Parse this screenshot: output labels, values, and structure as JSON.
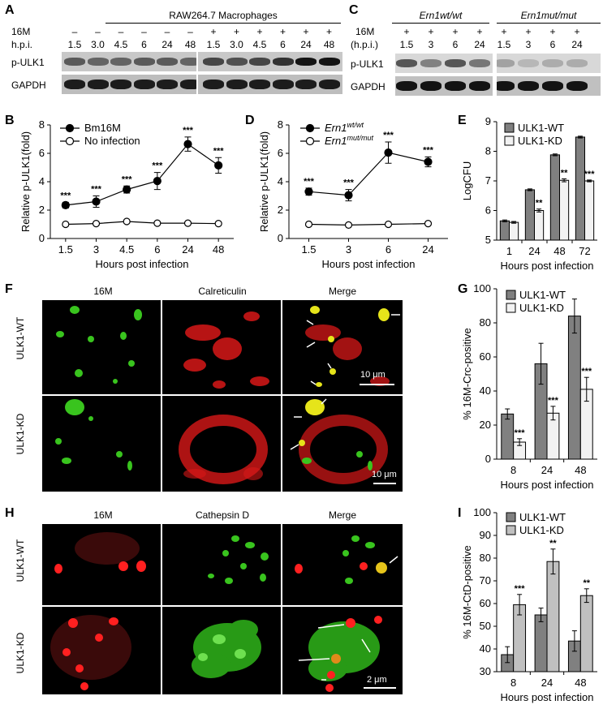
{
  "panels": {
    "A": "A",
    "B": "B",
    "C": "C",
    "D": "D",
    "E": "E",
    "F": "F",
    "G": "G",
    "H": "H",
    "I": "I"
  },
  "panelA": {
    "title": "RAW264.7 Macrophages",
    "row_16m_label": "16M",
    "row_hpi_label": "h.p.i.",
    "signs": [
      "–",
      "–",
      "–",
      "–",
      "–",
      "–",
      "+",
      "+",
      "+",
      "+",
      "+",
      "+"
    ],
    "hpi": [
      "1.5",
      "3.0",
      "4.5",
      "6",
      "24",
      "48",
      "1.5",
      "3.0",
      "4.5",
      "6",
      "24",
      "48"
    ],
    "blot_labels": [
      "p-ULK1",
      "GAPDH"
    ]
  },
  "panelC": {
    "genotype_wt": "Ern1wt/wt",
    "genotype_mut": "Ern1mut/mut",
    "row_16m_label": "16M",
    "row_hpi_label": "(h.p.i.)",
    "signs": [
      "+",
      "+",
      "+",
      "+",
      "+",
      "+",
      "+",
      "+"
    ],
    "hpi": [
      "1.5",
      "3",
      "6",
      "24",
      "1.5",
      "3",
      "6",
      "24"
    ],
    "blot_labels": [
      "p-ULK1",
      "GAPDH"
    ]
  },
  "micrographs": {
    "F": {
      "cols": [
        "16M",
        "Calreticulin",
        "Merge"
      ],
      "rows": [
        "ULK1-WT",
        "ULK1-KD"
      ],
      "scale_wt": "10 μm",
      "scale_kd": "10 μm"
    },
    "H": {
      "cols": [
        "16M",
        "Cathepsin D",
        "Merge"
      ],
      "rows": [
        "ULK1-WT",
        "ULK1-KD"
      ],
      "scale_kd": "2 μm"
    }
  },
  "chart_data": [
    {
      "panel": "B",
      "type": "line",
      "categories": [
        "1.5",
        "3",
        "4.5",
        "6",
        "24",
        "48"
      ],
      "series": [
        {
          "name": "Bm16M",
          "values": [
            2.35,
            2.6,
            3.45,
            4.05,
            6.65,
            5.15
          ],
          "errors": [
            0.2,
            0.4,
            0.25,
            0.6,
            0.5,
            0.55
          ],
          "marker": "filled"
        },
        {
          "name": "No infection",
          "values": [
            1.0,
            1.05,
            1.2,
            1.08,
            1.08,
            1.05
          ],
          "errors": [
            0.05,
            0.05,
            0.05,
            0.05,
            0.05,
            0.05
          ],
          "marker": "open"
        }
      ],
      "significance": [
        "***",
        "***",
        "***",
        "***",
        "***",
        "***"
      ],
      "xlabel": "Hours post infection",
      "ylabel": "Relative p-ULK1(fold)",
      "ylim": [
        0,
        8
      ],
      "yticks": [
        "0",
        "2",
        "4",
        "6",
        "8"
      ]
    },
    {
      "panel": "D",
      "type": "line",
      "categories": [
        "1.5",
        "3",
        "6",
        "24"
      ],
      "series": [
        {
          "name": "Ern1wt/wt",
          "values": [
            3.3,
            3.05,
            6.05,
            5.4
          ],
          "errors": [
            0.25,
            0.4,
            0.75,
            0.35
          ],
          "marker": "filled"
        },
        {
          "name": "Ern1mut/mut",
          "values": [
            1.0,
            0.95,
            1.0,
            1.05
          ],
          "errors": [
            0.05,
            0.05,
            0.05,
            0.1
          ],
          "marker": "open"
        }
      ],
      "significance": [
        "***",
        "***",
        "***",
        "***"
      ],
      "xlabel": "Hours post infection",
      "ylabel": "Relative p-ULK1(fold)",
      "ylim": [
        0,
        8
      ],
      "yticks": [
        "0",
        "2",
        "4",
        "6",
        "8"
      ]
    },
    {
      "panel": "E",
      "type": "bar",
      "categories": [
        "1",
        "24",
        "48",
        "72"
      ],
      "series": [
        {
          "name": "ULK1-WT",
          "values": [
            5.65,
            6.7,
            7.88,
            8.48
          ],
          "errors": [
            0.03,
            0.03,
            0.03,
            0.03
          ],
          "color": "#808080"
        },
        {
          "name": "ULK1-KD",
          "values": [
            5.6,
            6.0,
            7.02,
            7.0
          ],
          "errors": [
            0.03,
            0.05,
            0.05,
            0.03
          ],
          "color": "#f2f2f2"
        }
      ],
      "significance": [
        "",
        "**",
        "**",
        "***"
      ],
      "xlabel": "Hours post infection",
      "ylabel": "LogCFU",
      "ylim": [
        5,
        9
      ],
      "yticks": [
        "5",
        "6",
        "7",
        "8",
        "9"
      ]
    },
    {
      "panel": "G",
      "type": "bar",
      "categories": [
        "8",
        "24",
        "48"
      ],
      "series": [
        {
          "name": "ULK1-WT",
          "values": [
            26.5,
            56,
            84
          ],
          "errors": [
            3,
            12,
            10
          ],
          "color": "#808080"
        },
        {
          "name": "ULK1-KD",
          "values": [
            10,
            27,
            41
          ],
          "errors": [
            2,
            4,
            7
          ],
          "color": "#f2f2f2"
        }
      ],
      "significance": [
        "***",
        "***",
        "***"
      ],
      "xlabel": "Hours post infection",
      "ylabel": "% 16M-Crc-positive",
      "ylim": [
        0,
        100
      ],
      "yticks": [
        "0",
        "20",
        "40",
        "60",
        "80",
        "100"
      ]
    },
    {
      "panel": "I",
      "type": "bar",
      "categories": [
        "8",
        "24",
        "48"
      ],
      "series": [
        {
          "name": "ULK1-WT",
          "values": [
            37.5,
            55,
            43.5
          ],
          "errors": [
            3.5,
            3,
            4.5
          ],
          "color": "#808080"
        },
        {
          "name": "ULK1-KD",
          "values": [
            59.5,
            78.5,
            63.5
          ],
          "errors": [
            4.5,
            5.5,
            3
          ],
          "color": "#c0c0c0"
        }
      ],
      "significance": [
        "***",
        "**",
        "**"
      ],
      "xlabel": "Hours post infection",
      "ylabel": "% 16M-CtD-positive",
      "ylim": [
        30,
        100
      ],
      "yticks": [
        "30",
        "40",
        "50",
        "60",
        "70",
        "80",
        "90",
        "100"
      ]
    }
  ]
}
